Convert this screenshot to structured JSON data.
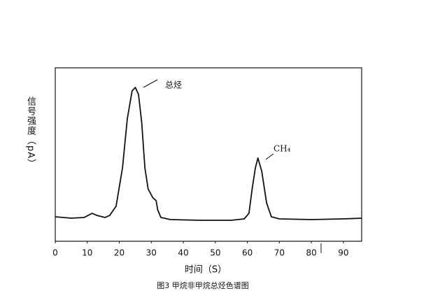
{
  "chart_data": {
    "type": "line",
    "x_label": "时间（S）",
    "y_label": "信号强度（pA）",
    "caption": "图3 甲烷非甲烷总烃色谱图",
    "annotations": [
      "总烃",
      "CH₄"
    ],
    "x": [
      0,
      5,
      9,
      11.5,
      13,
      15.5,
      17,
      19,
      21,
      22.5,
      24,
      25,
      26,
      27,
      28,
      29,
      30.5,
      31.5,
      32,
      33,
      36,
      45,
      55,
      59,
      60.5,
      61.5,
      62.5,
      63.3,
      64.5,
      66,
      67.5,
      70,
      80,
      90,
      95.7
    ],
    "values": [
      14.1,
      13.3,
      13.7,
      16.1,
      14.9,
      13.7,
      14.9,
      20.2,
      42.3,
      70.6,
      86.7,
      88.7,
      84.7,
      68.5,
      42.3,
      30.2,
      25,
      23.4,
      18.1,
      13.7,
      12.5,
      12.1,
      12.1,
      12.9,
      16.1,
      30.2,
      42.3,
      48,
      40.3,
      22.2,
      14.1,
      12.9,
      12.5,
      12.9,
      13.3
    ],
    "color": "#111111",
    "xlim": [
      0,
      95.7
    ],
    "xticks": [
      0,
      10,
      20,
      30,
      40,
      50,
      60,
      70,
      80,
      90
    ],
    "ylim": [
      0,
      100
    ],
    "grid": false
  }
}
